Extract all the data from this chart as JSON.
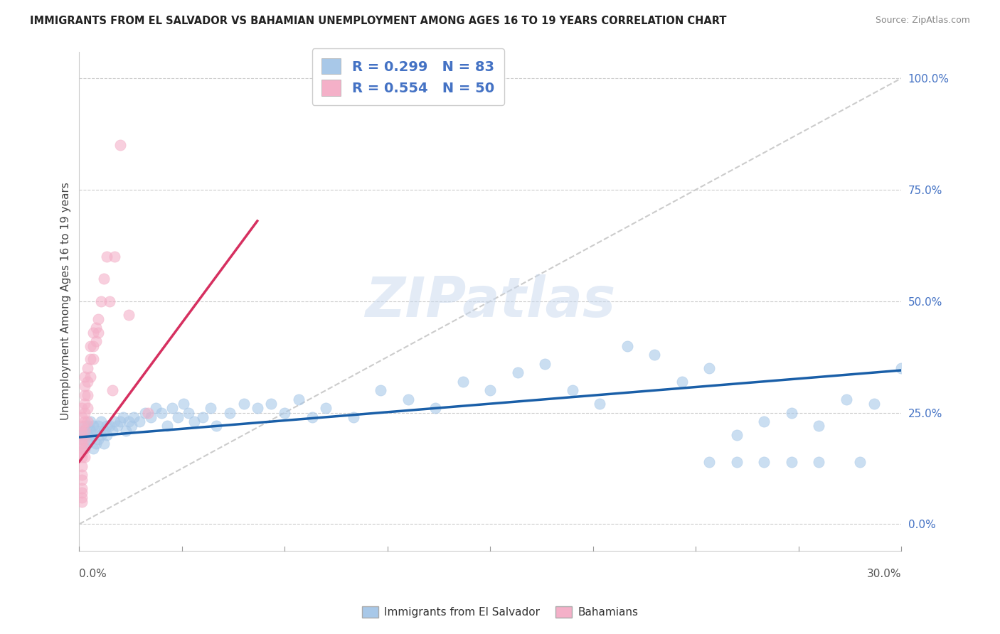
{
  "title": "IMMIGRANTS FROM EL SALVADOR VS BAHAMIAN UNEMPLOYMENT AMONG AGES 16 TO 19 YEARS CORRELATION CHART",
  "source": "Source: ZipAtlas.com",
  "ylabel": "Unemployment Among Ages 16 to 19 years",
  "right_yticks": [
    0.0,
    0.25,
    0.5,
    0.75,
    1.0
  ],
  "right_yticklabels": [
    "0.0%",
    "25.0%",
    "50.0%",
    "75.0%",
    "100.0%"
  ],
  "xmin": 0.0,
  "xmax": 0.3,
  "ymin": -0.06,
  "ymax": 1.06,
  "legend_r1": "R = 0.299",
  "legend_n1": "N = 83",
  "legend_r2": "R = 0.554",
  "legend_n2": "N = 50",
  "color_blue": "#a8c8e8",
  "color_pink": "#f4b0c8",
  "color_blue_line": "#1a5fa8",
  "color_pink_line": "#d63060",
  "color_diag": "#cccccc",
  "watermark": "ZIPatlas",
  "blue_scatter_x": [
    0.001,
    0.001,
    0.002,
    0.002,
    0.002,
    0.003,
    0.003,
    0.003,
    0.004,
    0.004,
    0.004,
    0.005,
    0.005,
    0.005,
    0.006,
    0.006,
    0.007,
    0.007,
    0.008,
    0.008,
    0.009,
    0.009,
    0.01,
    0.01,
    0.011,
    0.012,
    0.013,
    0.014,
    0.015,
    0.016,
    0.017,
    0.018,
    0.019,
    0.02,
    0.022,
    0.024,
    0.026,
    0.028,
    0.03,
    0.032,
    0.034,
    0.036,
    0.038,
    0.04,
    0.042,
    0.045,
    0.048,
    0.05,
    0.055,
    0.06,
    0.065,
    0.07,
    0.075,
    0.08,
    0.085,
    0.09,
    0.1,
    0.11,
    0.12,
    0.13,
    0.14,
    0.15,
    0.16,
    0.17,
    0.18,
    0.19,
    0.2,
    0.21,
    0.22,
    0.23,
    0.24,
    0.25,
    0.26,
    0.27,
    0.28,
    0.29,
    0.3,
    0.23,
    0.24,
    0.25,
    0.26,
    0.27,
    0.285
  ],
  "blue_scatter_y": [
    0.19,
    0.2,
    0.17,
    0.21,
    0.22,
    0.18,
    0.2,
    0.22,
    0.19,
    0.21,
    0.23,
    0.17,
    0.2,
    0.22,
    0.18,
    0.21,
    0.19,
    0.22,
    0.2,
    0.23,
    0.18,
    0.21,
    0.2,
    0.22,
    0.22,
    0.21,
    0.23,
    0.22,
    0.23,
    0.24,
    0.21,
    0.23,
    0.22,
    0.24,
    0.23,
    0.25,
    0.24,
    0.26,
    0.25,
    0.22,
    0.26,
    0.24,
    0.27,
    0.25,
    0.23,
    0.24,
    0.26,
    0.22,
    0.25,
    0.27,
    0.26,
    0.27,
    0.25,
    0.28,
    0.24,
    0.26,
    0.24,
    0.3,
    0.28,
    0.26,
    0.32,
    0.3,
    0.34,
    0.36,
    0.3,
    0.27,
    0.4,
    0.38,
    0.32,
    0.35,
    0.2,
    0.23,
    0.25,
    0.22,
    0.28,
    0.27,
    0.35,
    0.14,
    0.14,
    0.14,
    0.14,
    0.14,
    0.14
  ],
  "pink_scatter_x": [
    0.001,
    0.001,
    0.001,
    0.001,
    0.001,
    0.001,
    0.001,
    0.001,
    0.001,
    0.001,
    0.001,
    0.001,
    0.001,
    0.001,
    0.001,
    0.001,
    0.002,
    0.002,
    0.002,
    0.002,
    0.002,
    0.002,
    0.002,
    0.002,
    0.002,
    0.002,
    0.003,
    0.003,
    0.003,
    0.003,
    0.003,
    0.004,
    0.004,
    0.004,
    0.005,
    0.005,
    0.005,
    0.006,
    0.006,
    0.007,
    0.007,
    0.008,
    0.009,
    0.01,
    0.011,
    0.012,
    0.013,
    0.015,
    0.018,
    0.025
  ],
  "pink_scatter_y": [
    0.19,
    0.21,
    0.22,
    0.24,
    0.26,
    0.17,
    0.18,
    0.15,
    0.16,
    0.13,
    0.11,
    0.1,
    0.08,
    0.07,
    0.06,
    0.05,
    0.21,
    0.23,
    0.25,
    0.27,
    0.29,
    0.31,
    0.33,
    0.19,
    0.17,
    0.15,
    0.29,
    0.32,
    0.35,
    0.23,
    0.26,
    0.33,
    0.37,
    0.4,
    0.37,
    0.4,
    0.43,
    0.41,
    0.44,
    0.43,
    0.46,
    0.5,
    0.55,
    0.6,
    0.5,
    0.3,
    0.6,
    0.85,
    0.47,
    0.25
  ],
  "blue_line_x": [
    0.0,
    0.3
  ],
  "blue_line_y": [
    0.195,
    0.345
  ],
  "pink_line_x": [
    0.0,
    0.065
  ],
  "pink_line_y": [
    0.14,
    0.68
  ],
  "diag_line_x": [
    0.0,
    0.3
  ],
  "diag_line_y": [
    0.0,
    1.0
  ]
}
